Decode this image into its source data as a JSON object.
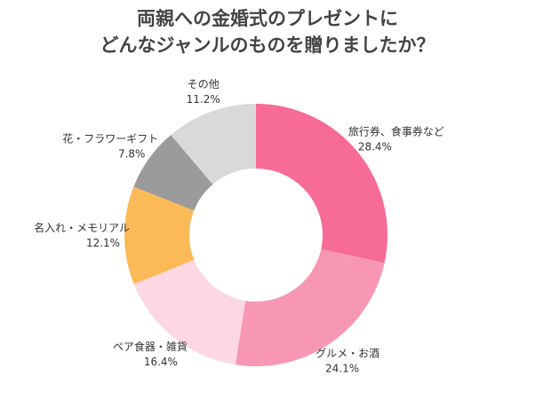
{
  "chart_data": {
    "type": "donut",
    "title": [
      "両親への金婚式のプレゼントに",
      "どんなジャンルのものを贈りましたか？"
    ],
    "categories": [
      "旅行券、食事券など",
      "グルメ・お酒",
      "ペア食器・雑貨",
      "名入れ・メモリアル",
      "花・フラワーギフト",
      "その他"
    ],
    "values": [
      28.4,
      24.1,
      16.4,
      12.1,
      7.8,
      11.2
    ],
    "value_labels": [
      "28.4%",
      "24.1%",
      "16.4%",
      "12.1%",
      "7.8%",
      "11.2%"
    ],
    "colors": [
      "#f76b97",
      "#f797b3",
      "#fdd7e3",
      "#fbb957",
      "#9b9b9b",
      "#d9d9d9"
    ]
  }
}
